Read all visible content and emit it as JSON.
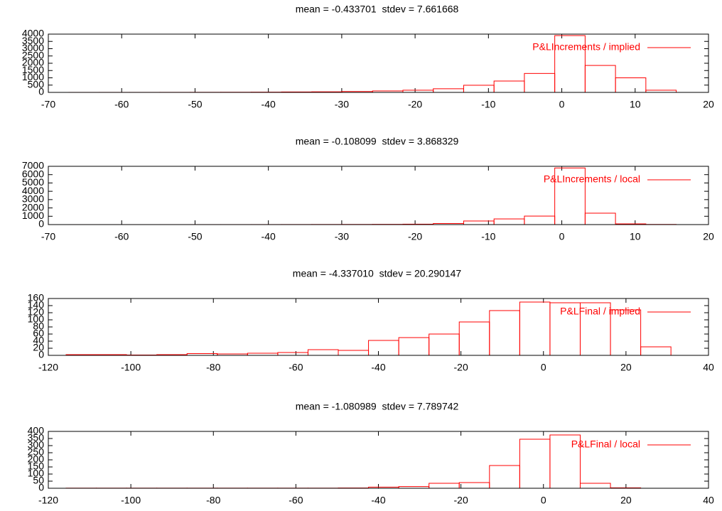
{
  "chart_data": [
    {
      "type": "histogram",
      "title": "mean = -0.433701  stdev = 7.661668",
      "bins": [
        -67.2,
        -63.06,
        -58.92,
        -54.78,
        -50.64,
        -46.5,
        -42.36,
        -38.22,
        -34.08,
        -29.94,
        -25.8,
        -21.66,
        -17.52,
        -13.38,
        -9.24,
        -5.1,
        -0.96,
        3.18,
        7.32,
        11.46,
        15.6
      ],
      "series": [
        {
          "name": "P&LIncrements / implied",
          "color": "#ff0000",
          "values": [
            2,
            3,
            3,
            5,
            8,
            12,
            18,
            30,
            40,
            60,
            100,
            150,
            250,
            490,
            780,
            1300,
            3900,
            1850,
            1000,
            150
          ]
        }
      ],
      "xlim": [
        -70,
        20
      ],
      "xticks": [
        -70,
        -60,
        -50,
        -40,
        -30,
        -20,
        -10,
        0,
        10,
        20
      ],
      "ylim": [
        0,
        4000
      ],
      "yticks": [
        0,
        500,
        1000,
        1500,
        2000,
        2500,
        3000,
        3500,
        4000
      ],
      "legend": "top right"
    },
    {
      "type": "histogram",
      "title": "mean = -0.108099  stdev = 3.868329",
      "bins": [
        -67.2,
        -63.06,
        -58.92,
        -54.78,
        -50.64,
        -46.5,
        -42.36,
        -38.22,
        -34.08,
        -29.94,
        -25.8,
        -21.66,
        -17.52,
        -13.38,
        -9.24,
        -5.1,
        -0.96,
        3.18,
        7.32,
        11.46,
        15.6
      ],
      "series": [
        {
          "name": "P&LIncrements / local",
          "color": "#ff0000",
          "values": [
            1,
            1,
            1,
            2,
            3,
            4,
            6,
            10,
            15,
            20,
            30,
            50,
            130,
            430,
            680,
            1020,
            6800,
            1370,
            85,
            20
          ]
        }
      ],
      "xlim": [
        -70,
        20
      ],
      "xticks": [
        -70,
        -60,
        -50,
        -40,
        -30,
        -20,
        -10,
        0,
        10,
        20
      ],
      "ylim": [
        0,
        7000
      ],
      "yticks": [
        0,
        1000,
        2000,
        3000,
        4000,
        5000,
        6000,
        7000
      ],
      "legend": "top right"
    },
    {
      "type": "histogram",
      "title": "mean = -4.337010  stdev = 20.290147",
      "bins": [
        -115.7,
        -108.37,
        -101.04,
        -93.71,
        -86.38,
        -79.05,
        -71.72,
        -64.39,
        -57.06,
        -49.73,
        -42.4,
        -35.07,
        -27.74,
        -20.41,
        -13.08,
        -5.75,
        1.58,
        8.91,
        16.24,
        23.57,
        30.9
      ],
      "series": [
        {
          "name": "P&LFinal / implied",
          "color": "#ff0000",
          "values": [
            2,
            2,
            1,
            2,
            5,
            4,
            6,
            8,
            16,
            14,
            42,
            50,
            60,
            94,
            126,
            150,
            148,
            148,
            128,
            24
          ]
        }
      ],
      "xlim": [
        -120,
        40
      ],
      "xticks": [
        -120,
        -100,
        -80,
        -60,
        -40,
        -20,
        0,
        20,
        40
      ],
      "ylim": [
        0,
        160
      ],
      "yticks": [
        0,
        20,
        40,
        60,
        80,
        100,
        120,
        140,
        160
      ],
      "legend": "top right"
    },
    {
      "type": "histogram",
      "title": "mean = -1.080989  stdev = 7.789742",
      "bins": [
        -115.7,
        -108.37,
        -101.04,
        -93.71,
        -86.38,
        -79.05,
        -71.72,
        -64.39,
        -57.06,
        -49.73,
        -42.4,
        -35.07,
        -27.74,
        -20.41,
        -13.08,
        -5.75,
        1.58,
        8.91,
        16.24,
        23.57,
        30.9
      ],
      "series": [
        {
          "name": "P&LFinal / local",
          "color": "#ff0000",
          "values": [
            1,
            1,
            1,
            1,
            1,
            1,
            1,
            1,
            1,
            2,
            8,
            12,
            35,
            40,
            160,
            345,
            375,
            35,
            3,
            0
          ]
        }
      ],
      "xlim": [
        -120,
        40
      ],
      "xticks": [
        -120,
        -100,
        -80,
        -60,
        -40,
        -20,
        0,
        20,
        40
      ],
      "ylim": [
        0,
        400
      ],
      "yticks": [
        0,
        50,
        100,
        150,
        200,
        250,
        300,
        350,
        400
      ],
      "legend": "top right"
    }
  ]
}
